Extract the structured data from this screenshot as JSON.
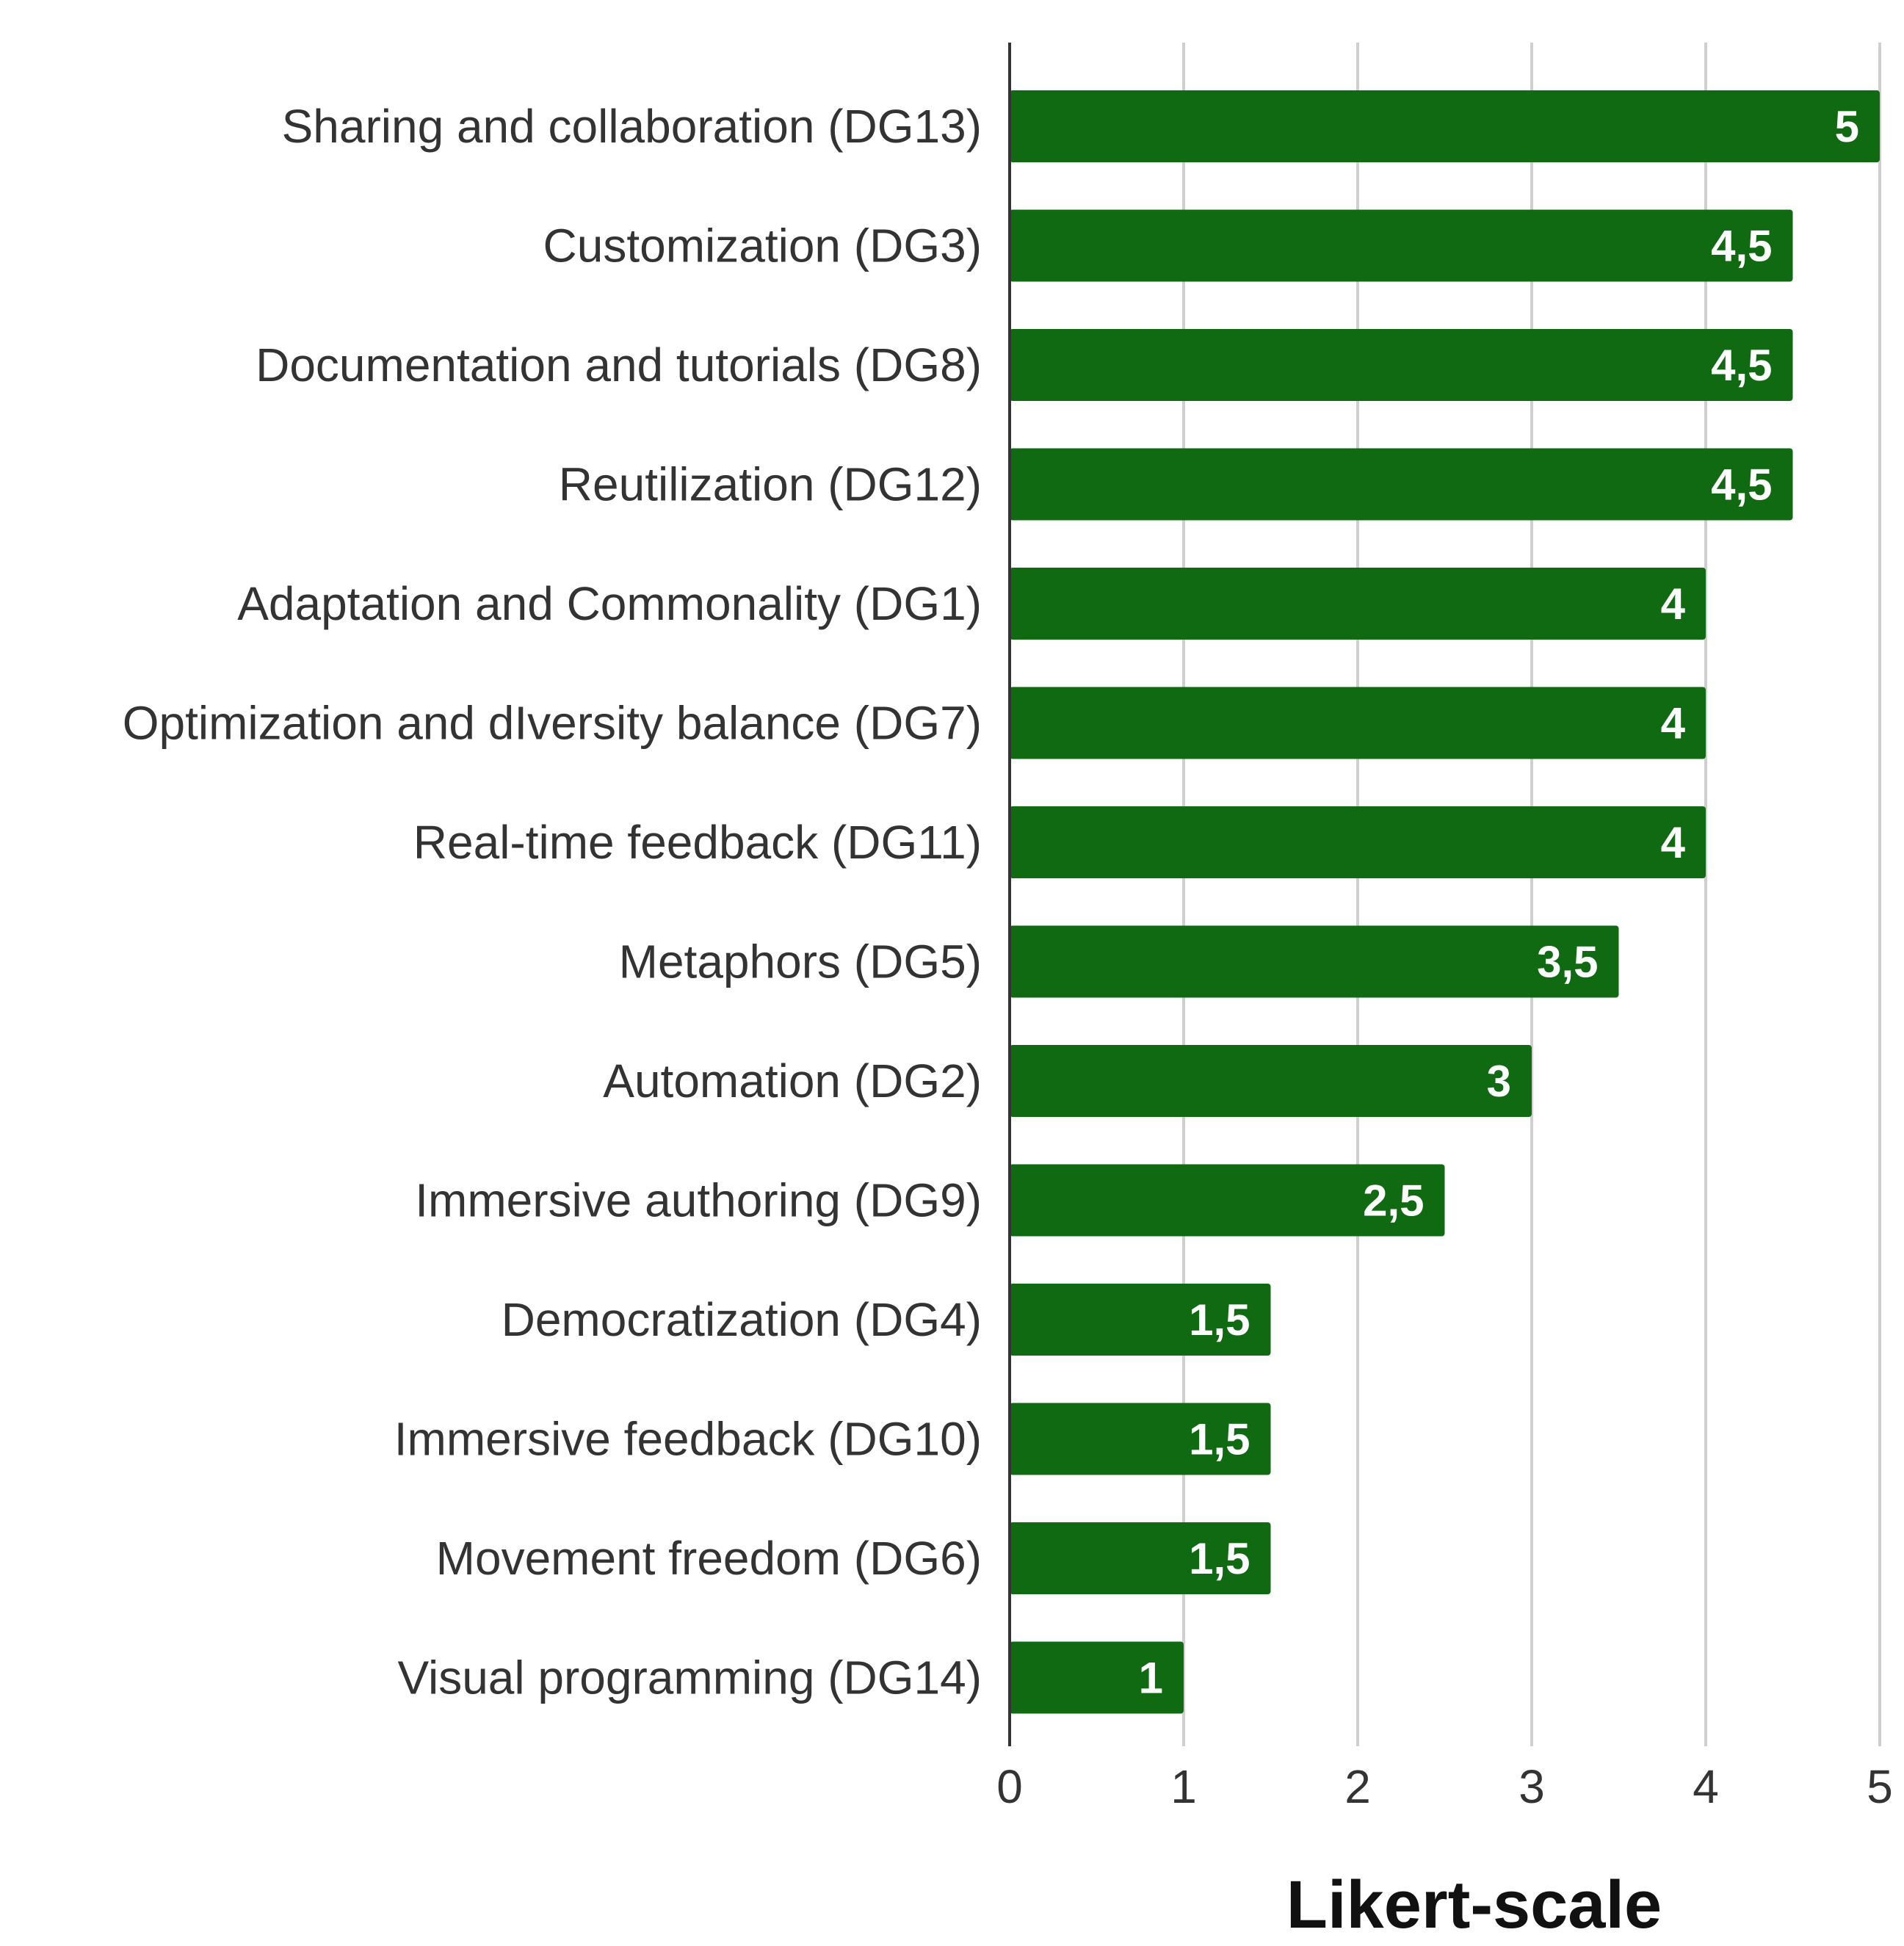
{
  "chart_data": {
    "type": "bar",
    "orientation": "horizontal",
    "categories": [
      "Sharing and collaboration (DG13)",
      "Customization (DG3)",
      "Documentation and tutorials (DG8)",
      "Reutilization (DG12)",
      "Adaptation and Commonality (DG1)",
      "Optimization and dIversity balance (DG7)",
      "Real-time feedback (DG11)",
      "Metaphors (DG5)",
      "Automation (DG2)",
      "Immersive authoring (DG9)",
      "Democratization (DG4)",
      "Immersive feedback (DG10)",
      "Movement freedom (DG6)",
      "Visual programming (DG14)"
    ],
    "values": [
      5,
      4.5,
      4.5,
      4.5,
      4,
      4,
      4,
      3.5,
      3,
      2.5,
      1.5,
      1.5,
      1.5,
      1
    ],
    "data_labels": [
      "5",
      "4,5",
      "4,5",
      "4,5",
      "4",
      "4",
      "4",
      "3,5",
      "3",
      "2,5",
      "1,5",
      "1,5",
      "1,5",
      "1"
    ],
    "title": "",
    "xlabel": "Likert-scale",
    "ylabel": "",
    "xlim": [
      0,
      5
    ],
    "xticks": [
      "0",
      "1",
      "2",
      "3",
      "4",
      "5"
    ],
    "grid": true,
    "bar_color": "#0f6a12",
    "label_color": "#ffffff"
  }
}
